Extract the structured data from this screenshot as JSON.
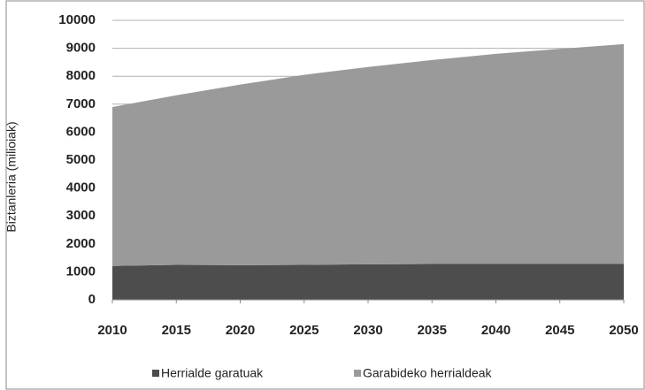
{
  "chart_data": {
    "type": "stacked_area",
    "y_label": "Biztanleria (milioiak)",
    "x": [
      2010,
      2015,
      2020,
      2025,
      2030,
      2035,
      2040,
      2045,
      2050
    ],
    "xlim": [
      2010,
      2050
    ],
    "xticks": [
      2010,
      2015,
      2020,
      2025,
      2030,
      2035,
      2040,
      2045,
      2050
    ],
    "ylim": [
      0,
      10000
    ],
    "yticks": [
      0,
      1000,
      2000,
      3000,
      4000,
      5000,
      6000,
      7000,
      8000,
      9000,
      10000
    ],
    "grid": true,
    "legend": "bottom",
    "series": [
      {
        "name": "Herrialde garatuak",
        "color": "#4d4d4d",
        "values": [
          1210,
          1250,
          1240,
          1250,
          1270,
          1280,
          1280,
          1280,
          1280
        ]
      },
      {
        "name": "Garabideko herrialdeak",
        "color": "#9a9a9a",
        "values": [
          5690,
          6070,
          6460,
          6800,
          7060,
          7300,
          7520,
          7700,
          7870
        ]
      }
    ]
  }
}
